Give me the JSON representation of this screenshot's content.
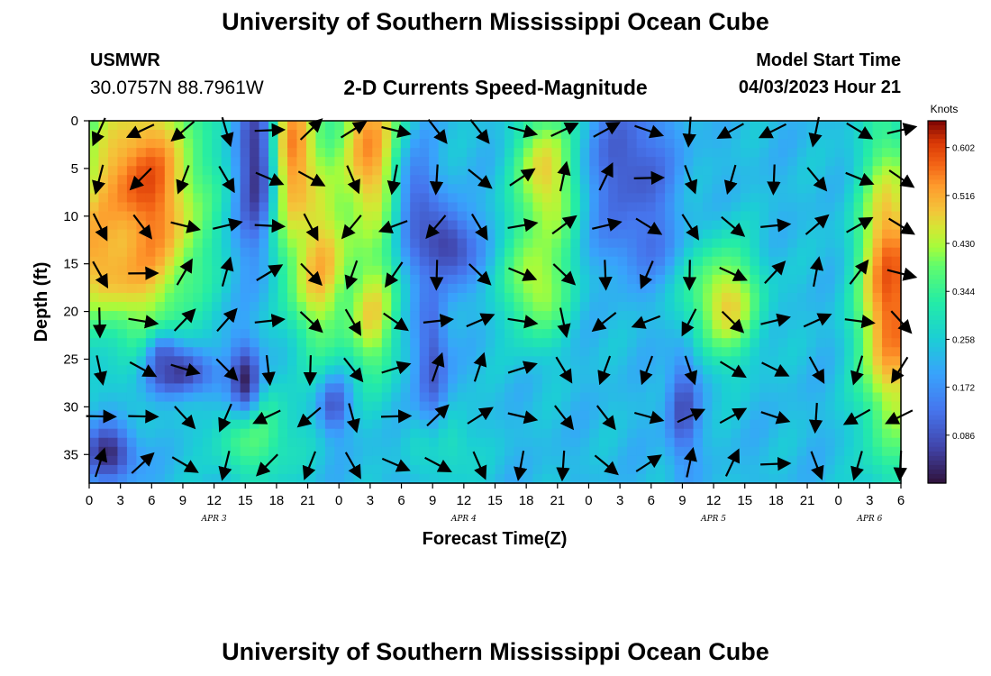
{
  "header": {
    "title": "University of Southern Mississippi Ocean Cube",
    "station": "USMWR",
    "coordinates": "30.0757N  88.7961W",
    "plot_title": "2-D Currents Speed-Magnitude",
    "model_start_label": "Model Start Time",
    "model_start_value": "04/03/2023 Hour 21"
  },
  "footer": {
    "title": "University of Southern Mississippi Ocean Cube"
  },
  "chart_data": {
    "type": "heatmap",
    "xlabel": "Forecast Time(Z)",
    "ylabel": "Depth (ft)",
    "x_ticks": [
      "0",
      "3",
      "6",
      "9",
      "12",
      "15",
      "18",
      "21",
      "0",
      "3",
      "6",
      "9",
      "12",
      "15",
      "18",
      "21",
      "0",
      "3",
      "6",
      "9",
      "12",
      "15",
      "18",
      "21",
      "0",
      "3",
      "6"
    ],
    "x_range_hours": [
      0,
      78
    ],
    "y_ticks": [
      0,
      5,
      10,
      15,
      20,
      25,
      30,
      35
    ],
    "y_range_ft": [
      0,
      38
    ],
    "date_labels": [
      {
        "text": "APR 3",
        "hour": 12
      },
      {
        "text": "APR 4",
        "hour": 36
      },
      {
        "text": "APR 5",
        "hour": 60
      },
      {
        "text": "APR 6",
        "hour": 75
      }
    ],
    "colorbar": {
      "title": "Knots",
      "range": [
        0.0,
        0.65
      ],
      "ticks": [
        "0.602",
        "0.516",
        "0.430",
        "0.344",
        "0.258",
        "0.172",
        "0.086"
      ],
      "tick_values": [
        0.602,
        0.516,
        0.43,
        0.344,
        0.258,
        0.172,
        0.086
      ]
    },
    "features": [
      {
        "hour": 5,
        "depth": 8,
        "speed": 0.6,
        "sh": 6,
        "sd": 13
      },
      {
        "hour": 2,
        "depth": 14,
        "speed": 0.52,
        "sh": 5,
        "sd": 6
      },
      {
        "hour": 19.5,
        "depth": 4,
        "speed": 0.58,
        "sh": 3,
        "sd": 10
      },
      {
        "hour": 22,
        "depth": 15,
        "speed": 0.5,
        "sh": 3,
        "sd": 9
      },
      {
        "hour": 27,
        "depth": 3,
        "speed": 0.55,
        "sh": 3,
        "sd": 11
      },
      {
        "hour": 27,
        "depth": 20,
        "speed": 0.47,
        "sh": 2.5,
        "sd": 7
      },
      {
        "hour": 44,
        "depth": 6,
        "speed": 0.5,
        "sh": 3,
        "sd": 8
      },
      {
        "hour": 43,
        "depth": 17,
        "speed": 0.45,
        "sh": 3,
        "sd": 6
      },
      {
        "hour": 61,
        "depth": 19,
        "speed": 0.48,
        "sh": 3.5,
        "sd": 6
      },
      {
        "hour": 77,
        "depth": 18,
        "speed": 0.6,
        "sh": 3,
        "sd": 16
      },
      {
        "hour": 16,
        "depth": 33,
        "speed": 0.38,
        "sh": 4,
        "sd": 5
      },
      {
        "hour": 34,
        "depth": 34,
        "speed": 0.33,
        "sh": 3,
        "sd": 4
      },
      {
        "hour": 16,
        "depth": 5,
        "speed": 0.05,
        "sh": 2,
        "sd": 11
      },
      {
        "hour": 9,
        "depth": 26.5,
        "speed": 0.05,
        "sh": 3.5,
        "sd": 2.5
      },
      {
        "hour": 2,
        "depth": 35,
        "speed": 0.03,
        "sh": 2.5,
        "sd": 3
      },
      {
        "hour": 7,
        "depth": 25,
        "speed": 0.1,
        "sh": 1.5,
        "sd": 2.5
      },
      {
        "hour": 15,
        "depth": 27,
        "speed": 0.03,
        "sh": 1.5,
        "sd": 4
      },
      {
        "hour": 34,
        "depth": 13,
        "speed": 0.03,
        "sh": 3,
        "sd": 4
      },
      {
        "hour": 52,
        "depth": 5,
        "speed": 0.08,
        "sh": 4,
        "sd": 8
      },
      {
        "hour": 53,
        "depth": 12,
        "speed": 0.12,
        "sh": 3,
        "sd": 4
      },
      {
        "hour": 31.5,
        "depth": 8,
        "speed": 0.12,
        "sh": 2,
        "sd": 6
      },
      {
        "hour": 33,
        "depth": 25,
        "speed": 0.08,
        "sh": 1.5,
        "sd": 8
      },
      {
        "hour": 57,
        "depth": 30,
        "speed": 0.08,
        "sh": 1.5,
        "sd": 6
      },
      {
        "hour": 23.5,
        "depth": 30,
        "speed": 0.1,
        "sh": 1.5,
        "sd": 3
      }
    ]
  }
}
